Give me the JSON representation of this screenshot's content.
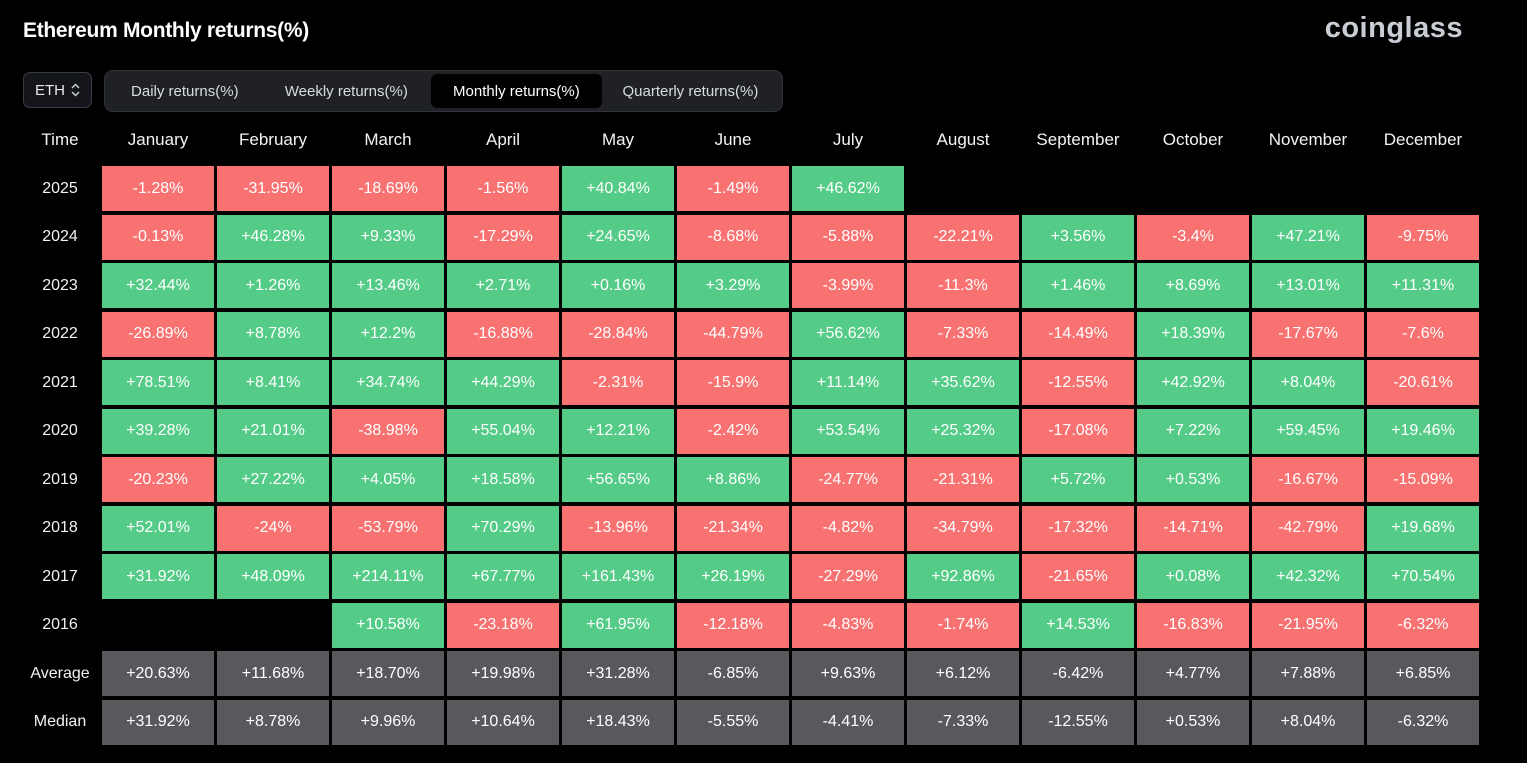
{
  "title": "Ethereum Monthly returns(%)",
  "brand": "coinglass",
  "asset_selector": {
    "value": "ETH",
    "icon": "chevron-updown-icon"
  },
  "tabs": [
    {
      "label": "Daily returns(%)",
      "active": false
    },
    {
      "label": "Weekly returns(%)",
      "active": false
    },
    {
      "label": "Monthly returns(%)",
      "active": true
    },
    {
      "label": "Quarterly returns(%)",
      "active": false
    }
  ],
  "colors": {
    "positive": "#54cc88",
    "negative": "#f87272",
    "stat": "#58595c",
    "background": "#000000"
  },
  "table": {
    "corner_label": "Time",
    "months": [
      "January",
      "February",
      "March",
      "April",
      "May",
      "June",
      "July",
      "August",
      "September",
      "October",
      "November",
      "December"
    ],
    "rows": [
      {
        "year": "2025",
        "values": [
          "-1.28%",
          "-31.95%",
          "-18.69%",
          "-1.56%",
          "+40.84%",
          "-1.49%",
          "+46.62%",
          "",
          "",
          "",
          "",
          ""
        ]
      },
      {
        "year": "2024",
        "values": [
          "-0.13%",
          "+46.28%",
          "+9.33%",
          "-17.29%",
          "+24.65%",
          "-8.68%",
          "-5.88%",
          "-22.21%",
          "+3.56%",
          "-3.4%",
          "+47.21%",
          "-9.75%"
        ]
      },
      {
        "year": "2023",
        "values": [
          "+32.44%",
          "+1.26%",
          "+13.46%",
          "+2.71%",
          "+0.16%",
          "+3.29%",
          "-3.99%",
          "-11.3%",
          "+1.46%",
          "+8.69%",
          "+13.01%",
          "+11.31%"
        ]
      },
      {
        "year": "2022",
        "values": [
          "-26.89%",
          "+8.78%",
          "+12.2%",
          "-16.88%",
          "-28.84%",
          "-44.79%",
          "+56.62%",
          "-7.33%",
          "-14.49%",
          "+18.39%",
          "-17.67%",
          "-7.6%"
        ]
      },
      {
        "year": "2021",
        "values": [
          "+78.51%",
          "+8.41%",
          "+34.74%",
          "+44.29%",
          "-2.31%",
          "-15.9%",
          "+11.14%",
          "+35.62%",
          "-12.55%",
          "+42.92%",
          "+8.04%",
          "-20.61%"
        ]
      },
      {
        "year": "2020",
        "values": [
          "+39.28%",
          "+21.01%",
          "-38.98%",
          "+55.04%",
          "+12.21%",
          "-2.42%",
          "+53.54%",
          "+25.32%",
          "-17.08%",
          "+7.22%",
          "+59.45%",
          "+19.46%"
        ]
      },
      {
        "year": "2019",
        "values": [
          "-20.23%",
          "+27.22%",
          "+4.05%",
          "+18.58%",
          "+56.65%",
          "+8.86%",
          "-24.77%",
          "-21.31%",
          "+5.72%",
          "+0.53%",
          "-16.67%",
          "-15.09%"
        ]
      },
      {
        "year": "2018",
        "values": [
          "+52.01%",
          "-24%",
          "-53.79%",
          "+70.29%",
          "-13.96%",
          "-21.34%",
          "-4.82%",
          "-34.79%",
          "-17.32%",
          "-14.71%",
          "-42.79%",
          "+19.68%"
        ]
      },
      {
        "year": "2017",
        "values": [
          "+31.92%",
          "+48.09%",
          "+214.11%",
          "+67.77%",
          "+161.43%",
          "+26.19%",
          "-27.29%",
          "+92.86%",
          "-21.65%",
          "+0.08%",
          "+42.32%",
          "+70.54%"
        ]
      },
      {
        "year": "2016",
        "values": [
          "",
          "",
          "+10.58%",
          "-23.18%",
          "+61.95%",
          "-12.18%",
          "-4.83%",
          "-1.74%",
          "+14.53%",
          "-16.83%",
          "-21.95%",
          "-6.32%"
        ]
      }
    ],
    "stats": [
      {
        "label": "Average",
        "values": [
          "+20.63%",
          "+11.68%",
          "+18.70%",
          "+19.98%",
          "+31.28%",
          "-6.85%",
          "+9.63%",
          "+6.12%",
          "-6.42%",
          "+4.77%",
          "+7.88%",
          "+6.85%"
        ]
      },
      {
        "label": "Median",
        "values": [
          "+31.92%",
          "+8.78%",
          "+9.96%",
          "+10.64%",
          "+18.43%",
          "-5.55%",
          "-4.41%",
          "-7.33%",
          "-12.55%",
          "+0.53%",
          "+8.04%",
          "-6.32%"
        ]
      }
    ]
  }
}
